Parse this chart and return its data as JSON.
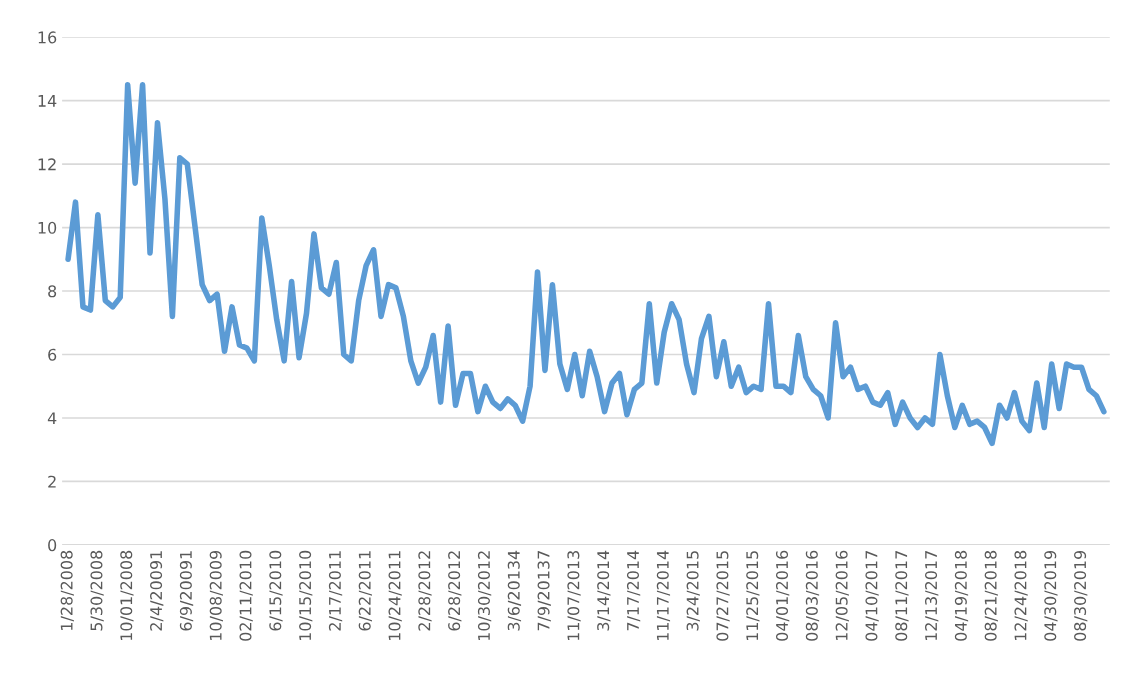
{
  "chart_data": {
    "type": "line",
    "categories": [
      "1/28/2008",
      null,
      null,
      null,
      "5/30/2008",
      null,
      null,
      null,
      "10/01/2008",
      null,
      null,
      null,
      "2/4/20091",
      null,
      null,
      null,
      "6/9/20091",
      null,
      null,
      null,
      "10/08/2009",
      null,
      null,
      null,
      "02/11/2010",
      null,
      null,
      null,
      "6/15/2010",
      null,
      null,
      null,
      "10/15/2010",
      null,
      null,
      null,
      "2/17/2011",
      null,
      null,
      null,
      "6/22/2011",
      null,
      null,
      null,
      "10/24/2011",
      null,
      null,
      null,
      "2/28/2012",
      null,
      null,
      null,
      "6/28/2012",
      null,
      null,
      null,
      "10/30/2012",
      null,
      null,
      null,
      "3/6/20134",
      null,
      null,
      null,
      "7/9/20137",
      null,
      null,
      null,
      "11/07/2013",
      null,
      null,
      null,
      "3/14/2014",
      null,
      null,
      null,
      "7/17/2014",
      null,
      null,
      null,
      "11/17/2014",
      null,
      null,
      null,
      "3/24/2015",
      null,
      null,
      null,
      "07/27/2015",
      null,
      null,
      null,
      "11/25/2015",
      null,
      null,
      null,
      "04/01/2016",
      null,
      null,
      null,
      "08/03/2016",
      null,
      null,
      null,
      "12/05/2016",
      null,
      null,
      null,
      "04/10/2017",
      null,
      null,
      null,
      "08/11/2017",
      null,
      null,
      null,
      "12/13/2017",
      null,
      null,
      null,
      "04/19/2018",
      null,
      null,
      null,
      "08/21/2018",
      null,
      null,
      null,
      "12/24/2018",
      null,
      null,
      null,
      "04/30/2019",
      null,
      null,
      null,
      "08/30/2019",
      null,
      null,
      null
    ],
    "series": [
      {
        "color": "#5b9bd5",
        "values": [
          9.0,
          10.8,
          7.5,
          7.4,
          10.4,
          7.7,
          7.5,
          7.8,
          14.5,
          11.4,
          14.5,
          9.2,
          13.3,
          10.9,
          7.2,
          12.2,
          12.0,
          10.1,
          8.2,
          7.7,
          7.9,
          6.1,
          7.5,
          6.3,
          6.2,
          5.8,
          10.3,
          8.8,
          7.1,
          5.8,
          8.3,
          5.9,
          7.3,
          9.8,
          8.1,
          7.9,
          8.9,
          6.0,
          5.8,
          7.7,
          8.8,
          9.3,
          7.2,
          8.2,
          8.1,
          7.2,
          5.8,
          5.1,
          5.6,
          6.6,
          4.5,
          6.9,
          4.4,
          5.4,
          5.4,
          4.2,
          5.0,
          4.5,
          4.3,
          4.6,
          4.4,
          3.9,
          5.0,
          8.6,
          5.5,
          8.2,
          5.7,
          4.9,
          6.0,
          4.7,
          6.1,
          5.3,
          4.2,
          5.1,
          5.4,
          4.1,
          4.9,
          5.1,
          7.6,
          5.1,
          6.7,
          7.6,
          7.1,
          5.7,
          4.8,
          6.5,
          7.2,
          5.3,
          6.4,
          5.0,
          5.6,
          4.8,
          5.0,
          4.9,
          7.6,
          5.0,
          5.0,
          4.8,
          6.6,
          5.3,
          4.9,
          4.7,
          4.0,
          7.0,
          5.3,
          5.6,
          4.9,
          5.0,
          4.5,
          4.4,
          4.8,
          3.8,
          4.5,
          4.0,
          3.7,
          4.0,
          3.8,
          6.0,
          4.7,
          3.7,
          4.4,
          3.8,
          3.9,
          3.7,
          3.2,
          4.4,
          4.0,
          4.8,
          3.9,
          3.6,
          5.1,
          3.7,
          5.7,
          4.3,
          5.7,
          5.6,
          5.6,
          4.9,
          4.7,
          4.2
        ]
      }
    ],
    "ylim": [
      0,
      16
    ],
    "yticks": [
      0,
      2,
      4,
      6,
      8,
      10,
      12,
      14,
      16
    ],
    "grid": "y",
    "line_style": "solid"
  }
}
